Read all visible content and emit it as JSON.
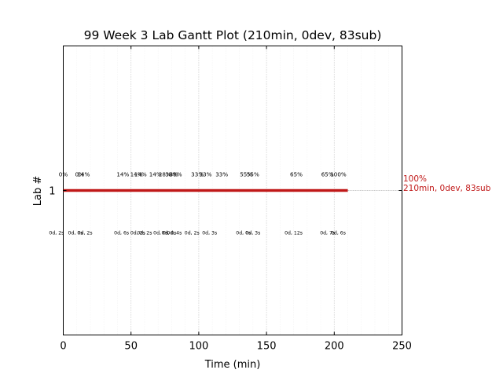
{
  "chart_data": {
    "type": "gantt",
    "title": "99 Week 3 Lab Gantt Plot (210min, 0dev, 83sub)",
    "xlabel": "Time (min)",
    "ylabel": "Lab #",
    "xlim": [
      0,
      250
    ],
    "ylim": [
      0,
      2
    ],
    "x_ticks": [
      0,
      50,
      100,
      150,
      200,
      250
    ],
    "y_ticks": [
      1
    ],
    "grid": "dotted vertical minor/major, dotted horizontal at lab row",
    "bar_color": "#c01818",
    "bars": [
      {
        "lab": 1,
        "start": 0,
        "end": 210
      }
    ],
    "end_annotation": {
      "line1": "100%",
      "line2": "210min, 0dev, 83sub",
      "color": "#c01818"
    },
    "percent_labels": [
      {
        "x": 0,
        "text": "0%"
      },
      {
        "x": 12,
        "text": "0%"
      },
      {
        "x": 15,
        "text": "14%"
      },
      {
        "x": 44,
        "text": "14%"
      },
      {
        "x": 54,
        "text": "14%"
      },
      {
        "x": 57,
        "text": "14%"
      },
      {
        "x": 68,
        "text": "14%"
      },
      {
        "x": 75,
        "text": "28%"
      },
      {
        "x": 80,
        "text": "38%"
      },
      {
        "x": 83,
        "text": "38%"
      },
      {
        "x": 99,
        "text": "33%"
      },
      {
        "x": 105,
        "text": "33%"
      },
      {
        "x": 117,
        "text": "33%"
      },
      {
        "x": 135,
        "text": "55%"
      },
      {
        "x": 140,
        "text": "55%"
      },
      {
        "x": 172,
        "text": "65%"
      },
      {
        "x": 195,
        "text": "65%"
      },
      {
        "x": 203,
        "text": "100%"
      }
    ],
    "duration_labels": [
      {
        "x": -5,
        "text": "0d, 2s"
      },
      {
        "x": 9,
        "text": "0d, 0s"
      },
      {
        "x": 16,
        "text": "0d, 2s"
      },
      {
        "x": 43,
        "text": "0d, 6s"
      },
      {
        "x": 55,
        "text": "0d, 2s"
      },
      {
        "x": 60,
        "text": "0d, 2s"
      },
      {
        "x": 72,
        "text": "0d, 0s"
      },
      {
        "x": 78,
        "text": "0d, 0s"
      },
      {
        "x": 82,
        "text": "0d, 4s"
      },
      {
        "x": 95,
        "text": "0d, 2s"
      },
      {
        "x": 108,
        "text": "0d, 3s"
      },
      {
        "x": 133,
        "text": "0d, 0s"
      },
      {
        "x": 140,
        "text": "0d, 3s"
      },
      {
        "x": 170,
        "text": "0d, 12s"
      },
      {
        "x": 195,
        "text": "0d, 7s"
      },
      {
        "x": 203,
        "text": "0d, 6s"
      }
    ]
  }
}
